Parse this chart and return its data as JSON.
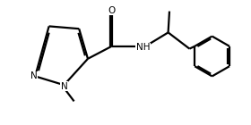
{
  "background": "#ffffff",
  "line_color": "#000000",
  "line_width": 1.6,
  "font_size": 7.5,
  "fig_width": 2.8,
  "fig_height": 1.4,
  "dpi": 100,
  "xlim": [
    -0.5,
    9.5
  ],
  "ylim": [
    -0.3,
    4.7
  ]
}
